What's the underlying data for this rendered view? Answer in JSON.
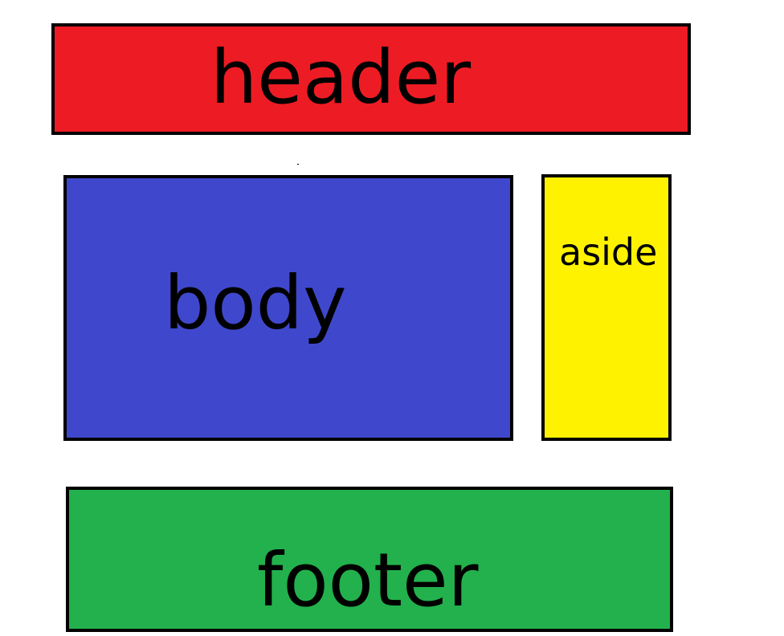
{
  "diagram": {
    "header": {
      "label": "header",
      "color": "#ed1c24"
    },
    "body": {
      "label": "body",
      "color": "#3f48cc"
    },
    "aside": {
      "label": "aside",
      "color": "#fff200"
    },
    "footer": {
      "label": "footer",
      "color": "#22b14c"
    },
    "border_color": "#000000"
  }
}
